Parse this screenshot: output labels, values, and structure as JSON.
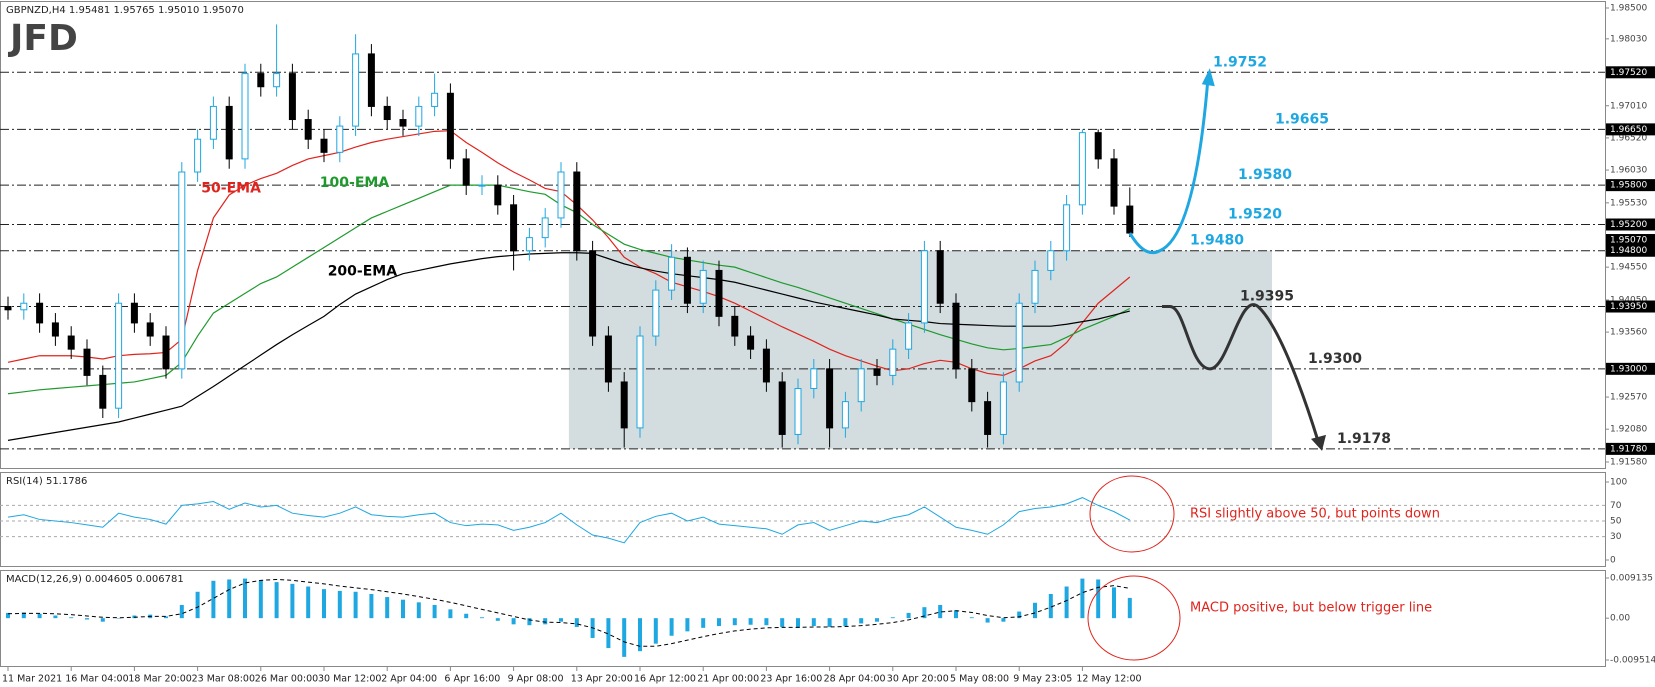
{
  "header": "GBPNZD,H4  1.95481 1.95765 1.95010 1.95070",
  "logo": "JFD",
  "chart_data": [
    {
      "type": "candlestick",
      "categories": [
        "11 Mar 2021",
        null,
        null,
        null,
        "16 Mar 04:00",
        null,
        null,
        null,
        "18 Mar 20:00",
        null,
        null,
        null,
        "23 Mar 08:00",
        null,
        null,
        null,
        "26 Mar 00:00",
        null,
        null,
        null,
        "30 Mar 12:00",
        null,
        null,
        null,
        "2 Apr 04:00",
        null,
        null,
        null,
        "6 Apr 16:00",
        null,
        null,
        null,
        "9 Apr 08:00",
        null,
        null,
        null,
        "13 Apr 20:00",
        null,
        null,
        null,
        "16 Apr 12:00",
        null,
        null,
        null,
        "21 Apr 00:00",
        null,
        null,
        null,
        "23 Apr 16:00",
        null,
        null,
        null,
        "28 Apr 04:00",
        null,
        null,
        null,
        "30 Apr 20:00",
        null,
        null,
        null,
        "5 May 08:00",
        null,
        null,
        null,
        "9 May 23:05",
        null,
        null,
        null,
        "12 May 12:00",
        null,
        null,
        null
      ],
      "open": [
        1.9395,
        1.939,
        1.94,
        1.937,
        1.935,
        1.933,
        1.929,
        1.924,
        1.94,
        1.937,
        1.935,
        1.93,
        1.96,
        1.965,
        1.97,
        1.962,
        1.975,
        1.973,
        1.975,
        1.968,
        1.965,
        1.963,
        1.967,
        1.978,
        1.97,
        1.968,
        1.967,
        1.97,
        1.972,
        1.962,
        1.958,
        1.958,
        1.955,
        1.948,
        1.95,
        1.953,
        1.96,
        1.948,
        1.935,
        1.928,
        1.921,
        1.935,
        1.942,
        1.947,
        1.94,
        1.945,
        1.938,
        1.935,
        1.933,
        1.928,
        1.92,
        1.927,
        1.93,
        1.921,
        1.925,
        1.93,
        1.929,
        1.933,
        1.937,
        1.948,
        1.94,
        1.93,
        1.925,
        1.92,
        1.928,
        1.94,
        1.945,
        1.948,
        1.955,
        1.966,
        1.962,
        1.95481
      ],
      "high": [
        1.941,
        1.9415,
        1.9415,
        1.9385,
        1.9365,
        1.9345,
        1.9305,
        1.9415,
        1.9415,
        1.9385,
        1.9365,
        1.9615,
        1.9665,
        1.9715,
        1.9715,
        1.9765,
        1.9765,
        1.9825,
        1.9765,
        1.9695,
        1.9665,
        1.9685,
        1.981,
        1.9795,
        1.9715,
        1.9695,
        1.9715,
        1.975,
        1.9735,
        1.9635,
        1.9595,
        1.9595,
        1.9565,
        1.9515,
        1.9545,
        1.9615,
        1.9615,
        1.9495,
        1.9365,
        1.9295,
        1.9365,
        1.9435,
        1.949,
        1.9485,
        1.9465,
        1.9465,
        1.9395,
        1.9365,
        1.9345,
        1.9295,
        1.9285,
        1.9315,
        1.9315,
        1.9265,
        1.9315,
        1.9315,
        1.9345,
        1.9385,
        1.9495,
        1.9495,
        1.9415,
        1.9315,
        1.9265,
        1.9295,
        1.9415,
        1.9465,
        1.9495,
        1.9565,
        1.9665,
        1.9665,
        1.9635,
        1.95765
      ],
      "low": [
        1.9375,
        1.9375,
        1.9355,
        1.9335,
        1.9315,
        1.9275,
        1.9225,
        1.9225,
        1.9355,
        1.9335,
        1.9285,
        1.9285,
        1.9585,
        1.9635,
        1.9605,
        1.9605,
        1.9715,
        1.9715,
        1.9665,
        1.9635,
        1.9615,
        1.9615,
        1.9655,
        1.9685,
        1.9665,
        1.9655,
        1.9655,
        1.9685,
        1.9605,
        1.9565,
        1.9565,
        1.9535,
        1.945,
        1.9465,
        1.9485,
        1.9515,
        1.9465,
        1.9335,
        1.9265,
        1.918,
        1.9195,
        1.9335,
        1.9405,
        1.9385,
        1.9385,
        1.9365,
        1.9335,
        1.9315,
        1.9265,
        1.918,
        1.9185,
        1.9255,
        1.918,
        1.9195,
        1.9235,
        1.9275,
        1.9275,
        1.9315,
        1.9355,
        1.9385,
        1.9285,
        1.9235,
        1.918,
        1.9185,
        1.9265,
        1.9385,
        1.9435,
        1.9465,
        1.9535,
        1.9605,
        1.9535,
        1.9501
      ],
      "close": [
        1.939,
        1.94,
        1.937,
        1.935,
        1.933,
        1.929,
        1.924,
        1.94,
        1.937,
        1.935,
        1.93,
        1.96,
        1.965,
        1.97,
        1.962,
        1.975,
        1.973,
        1.975,
        1.968,
        1.965,
        1.963,
        1.967,
        1.978,
        1.97,
        1.968,
        1.967,
        1.97,
        1.972,
        1.962,
        1.958,
        1.958,
        1.955,
        1.948,
        1.95,
        1.953,
        1.96,
        1.948,
        1.935,
        1.928,
        1.921,
        1.935,
        1.942,
        1.947,
        1.94,
        1.945,
        1.938,
        1.935,
        1.933,
        1.928,
        1.92,
        1.927,
        1.93,
        1.921,
        1.925,
        1.93,
        1.929,
        1.933,
        1.937,
        1.948,
        1.94,
        1.93,
        1.925,
        1.92,
        1.928,
        1.94,
        1.945,
        1.948,
        1.955,
        1.966,
        1.962,
        1.9548,
        1.9507
      ],
      "up_color": "#1ea7e1",
      "down_color": "#000000",
      "series": [
        {
          "name": "50-EMA",
          "color": "#e0241d",
          "values": [
            1.931,
            1.9315,
            1.932,
            1.932,
            1.932,
            1.9318,
            1.9315,
            1.932,
            1.9322,
            1.9323,
            1.9325,
            1.9345,
            1.945,
            1.953,
            1.9565,
            1.958,
            1.959,
            1.9598,
            1.961,
            1.962,
            1.9625,
            1.963,
            1.9638,
            1.9645,
            1.965,
            1.9654,
            1.9658,
            1.9662,
            1.9663,
            1.9645,
            1.963,
            1.9614,
            1.96,
            1.9588,
            1.9575,
            1.957,
            1.955,
            1.9527,
            1.95,
            1.947,
            1.9455,
            1.9445,
            1.9432,
            1.9425,
            1.9418,
            1.941,
            1.94,
            1.9388,
            1.9376,
            1.9364,
            1.9353,
            1.9342,
            1.933,
            1.932,
            1.9312,
            1.9304,
            1.9297,
            1.93,
            1.9308,
            1.9313,
            1.931,
            1.93,
            1.9293,
            1.929,
            1.93,
            1.9312,
            1.932,
            1.934,
            1.937,
            1.94,
            1.942,
            1.944
          ]
        },
        {
          "name": "100-EMA",
          "color": "#1e9a2c",
          "values": [
            1.9262,
            1.9265,
            1.9268,
            1.927,
            1.9272,
            1.9274,
            1.9276,
            1.9278,
            1.928,
            1.9285,
            1.929,
            1.931,
            1.935,
            1.9385,
            1.94,
            1.9415,
            1.943,
            1.944,
            1.9455,
            1.947,
            1.9485,
            1.95,
            1.9515,
            1.953,
            1.954,
            1.955,
            1.956,
            1.957,
            1.958,
            1.958,
            1.958,
            1.958,
            1.9575,
            1.957,
            1.9566,
            1.955,
            1.9538,
            1.952,
            1.9505,
            1.949,
            1.9482,
            1.9476,
            1.947,
            1.9466,
            1.9462,
            1.9458,
            1.9455,
            1.9447,
            1.9439,
            1.9431,
            1.9424,
            1.9416,
            1.9408,
            1.94,
            1.9392,
            1.9384,
            1.9376,
            1.9368,
            1.936,
            1.9352,
            1.9345,
            1.9338,
            1.9332,
            1.9329,
            1.9331,
            1.9334,
            1.9337,
            1.9348,
            1.936,
            1.937,
            1.938,
            1.9392
          ]
        },
        {
          "name": "200-EMA",
          "color": "#000000",
          "values": [
            1.9191,
            1.9195,
            1.9199,
            1.9203,
            1.9207,
            1.9211,
            1.9215,
            1.9219,
            1.9225,
            1.9231,
            1.9237,
            1.9243,
            1.9258,
            1.9273,
            1.9289,
            1.9305,
            1.9321,
            1.9337,
            1.9352,
            1.9366,
            1.938,
            1.9398,
            1.9414,
            1.9425,
            1.9436,
            1.9445,
            1.945,
            1.9455,
            1.946,
            1.9464,
            1.9468,
            1.9471,
            1.9473,
            1.9475,
            1.9476,
            1.9477,
            1.9477,
            1.9476,
            1.9468,
            1.946,
            1.9454,
            1.9449,
            1.9445,
            1.9442,
            1.9439,
            1.9436,
            1.9432,
            1.9426,
            1.942,
            1.9414,
            1.9408,
            1.9402,
            1.9397,
            1.9392,
            1.9387,
            1.9382,
            1.9376,
            1.9374,
            1.9372,
            1.9369,
            1.9368,
            1.9367,
            1.9366,
            1.9365,
            1.9365,
            1.9365,
            1.9365,
            1.9368,
            1.9372,
            1.9376,
            1.9382,
            1.9388
          ]
        }
      ],
      "ylim": [
        1.9158,
        1.985
      ],
      "yticks": [
        {
          "value": 1.985,
          "label": "1.98500"
        },
        {
          "value": 1.9803,
          "label": "1.98030"
        },
        {
          "value": 1.9701,
          "label": "1.97010"
        },
        {
          "value": 1.9652,
          "label": "1.96520"
        },
        {
          "value": 1.9603,
          "label": "1.96030"
        },
        {
          "value": 1.9553,
          "label": "1.95530"
        },
        {
          "value": 1.9455,
          "label": "1.94550"
        },
        {
          "value": 1.9405,
          "label": "1.94050"
        },
        {
          "value": 1.9356,
          "label": "1.93560"
        },
        {
          "value": 1.9257,
          "label": "1.92570"
        },
        {
          "value": 1.9208,
          "label": "1.92080"
        },
        {
          "value": 1.9158,
          "label": "1.91580"
        }
      ],
      "levels": [
        {
          "value": 1.9752,
          "label": "1.97520",
          "note": "1.9752",
          "color": "#1ea7e1"
        },
        {
          "value": 1.9665,
          "label": "1.96650",
          "note": "1.9665",
          "color": "#1ea7e1"
        },
        {
          "value": 1.958,
          "label": "1.95800",
          "note": "1.9580",
          "color": "#1ea7e1"
        },
        {
          "value": 1.952,
          "label": "1.95200",
          "note": "1.9520",
          "color": "#1ea7e1"
        },
        {
          "value": 1.948,
          "label": "1.94800",
          "note": "1.9480",
          "color": "#1ea7e1"
        },
        {
          "value": 1.9395,
          "label": "1.93950",
          "note": "1.9395",
          "color": "#333333"
        },
        {
          "value": 1.93,
          "label": "1.93000",
          "note": "1.9300",
          "color": "#333333"
        },
        {
          "value": 1.9178,
          "label": "1.91780",
          "note": "1.9178",
          "color": "#333333"
        }
      ],
      "last_price": {
        "value": 1.9507,
        "label": "1.95070"
      },
      "box_color": "#d3dde0"
    },
    {
      "type": "line",
      "title": "RSI(14) 51.1786",
      "color": "#1ea7e1",
      "values": [
        55,
        58,
        52,
        50,
        48,
        45,
        42,
        60,
        55,
        52,
        46,
        70,
        72,
        75,
        65,
        73,
        68,
        70,
        60,
        57,
        55,
        60,
        68,
        58,
        56,
        55,
        58,
        60,
        48,
        44,
        46,
        45,
        38,
        42,
        48,
        60,
        45,
        32,
        28,
        22,
        48,
        56,
        60,
        50,
        55,
        46,
        44,
        42,
        40,
        33,
        45,
        48,
        38,
        44,
        50,
        48,
        54,
        58,
        68,
        55,
        42,
        38,
        33,
        45,
        62,
        66,
        68,
        72,
        80,
        70,
        62,
        51.1786
      ],
      "ylim": [
        0,
        100
      ],
      "yticks": [
        0,
        30,
        50,
        70,
        100
      ],
      "annotation": "RSI slightly above 50, but points down",
      "annotation_color": "#e0241d"
    },
    {
      "type": "macd",
      "title": "MACD(12,26,9) 0.004605 0.006781",
      "color": "#1ea7e1",
      "histogram": [
        0.0012,
        0.0013,
        0.001,
        0.0006,
        0.0002,
        -0.0003,
        -0.0008,
        0.0,
        0.0006,
        0.0008,
        0.0004,
        0.003,
        0.006,
        0.0085,
        0.0088,
        0.009,
        0.0086,
        0.0082,
        0.0078,
        0.0072,
        0.0066,
        0.0062,
        0.006,
        0.0055,
        0.0048,
        0.0042,
        0.0036,
        0.003,
        0.002,
        0.001,
        0.0002,
        -0.0006,
        -0.0014,
        -0.0016,
        -0.0014,
        -0.0008,
        -0.002,
        -0.0045,
        -0.0068,
        -0.0088,
        -0.0075,
        -0.0058,
        -0.004,
        -0.003,
        -0.0022,
        -0.0018,
        -0.0016,
        -0.0015,
        -0.0016,
        -0.002,
        -0.0022,
        -0.0018,
        -0.002,
        -0.0018,
        -0.0012,
        -0.0008,
        0.0002,
        0.0012,
        0.0025,
        0.003,
        0.0018,
        0.0002,
        -0.001,
        -0.0008,
        0.0015,
        0.0035,
        0.0055,
        0.0072,
        0.009,
        0.0088,
        0.007,
        0.004605
      ],
      "signal": [
        0.001,
        0.0011,
        0.0011,
        0.001,
        0.0008,
        0.0005,
        0.0002,
        0.0001,
        0.0002,
        0.0004,
        0.0004,
        0.001,
        0.0025,
        0.0045,
        0.0065,
        0.008,
        0.0086,
        0.0088,
        0.0086,
        0.0082,
        0.0078,
        0.0073,
        0.0069,
        0.0065,
        0.006,
        0.0055,
        0.0049,
        0.0043,
        0.0036,
        0.0028,
        0.002,
        0.0012,
        0.0004,
        -0.0004,
        -0.0009,
        -0.001,
        -0.0013,
        -0.0022,
        -0.0036,
        -0.0054,
        -0.0064,
        -0.0064,
        -0.0058,
        -0.005,
        -0.0042,
        -0.0035,
        -0.0029,
        -0.0025,
        -0.0022,
        -0.0021,
        -0.0021,
        -0.002,
        -0.002,
        -0.0019,
        -0.0017,
        -0.0014,
        -0.001,
        -0.0004,
        0.0005,
        0.0014,
        0.0017,
        0.0013,
        0.0006,
        0.0001,
        0.0003,
        0.0012,
        0.0025,
        0.004,
        0.0058,
        0.007,
        0.0074,
        0.006781
      ],
      "ylim": [
        -0.009514,
        0.009135
      ],
      "yticks": [
        -0.009514,
        {
          "value": 0,
          "label": "0.00"
        },
        0.009135
      ],
      "annotation": "MACD positive, but below trigger line",
      "annotation_color": "#e0241d"
    }
  ]
}
